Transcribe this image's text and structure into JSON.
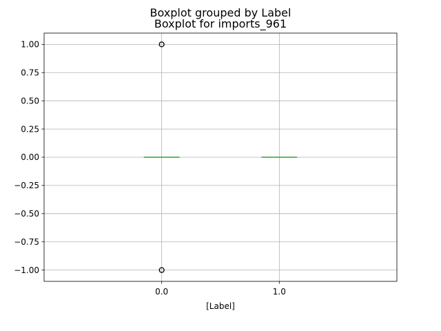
{
  "chart_data": {
    "type": "box",
    "suptitle": "Boxplot grouped by Label",
    "title": "Boxplot for imports_961",
    "xlabel": "[Label]",
    "ylabel": "",
    "categories": [
      "0.0",
      "1.0"
    ],
    "yticks": [
      "1.00",
      "0.75",
      "0.50",
      "0.25",
      "0.00",
      "−0.25",
      "−0.50",
      "−0.75",
      "−1.00"
    ],
    "ylim": [
      -1.1,
      1.1
    ],
    "grid": true,
    "boxes": [
      {
        "category": "0.0",
        "min": 0.0,
        "q1": 0.0,
        "median": 0.0,
        "q3": 0.0,
        "max": 0.0,
        "outliers": [
          1.0,
          -1.0
        ]
      },
      {
        "category": "1.0",
        "min": 0.0,
        "q1": 0.0,
        "median": 0.0,
        "q3": 0.0,
        "max": 0.0,
        "outliers": []
      }
    ],
    "colors": {
      "box": "#1f77b4",
      "median": "#2ca02c",
      "whisker": "#1f77b4",
      "grid": "#b0b0b0",
      "outlier": "#000000",
      "axes": "#000000"
    }
  }
}
